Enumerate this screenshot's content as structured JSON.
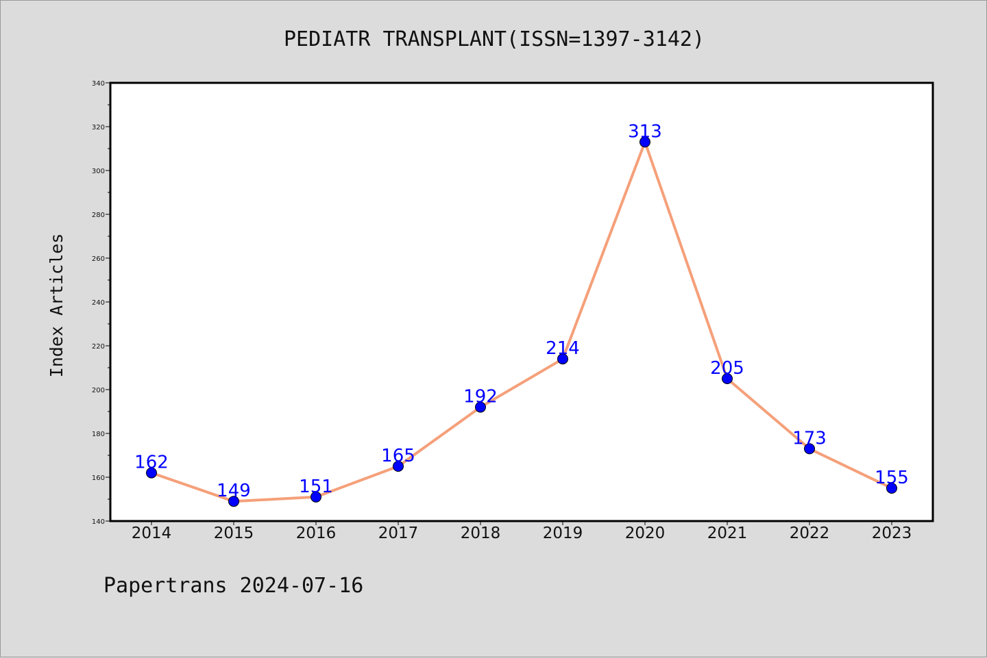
{
  "chart_data": {
    "type": "line",
    "title": "PEDIATR TRANSPLANT(ISSN=1397-3142)",
    "xlabel": "",
    "ylabel": "Index Articles",
    "categories": [
      "2014",
      "2015",
      "2016",
      "2017",
      "2018",
      "2019",
      "2020",
      "2021",
      "2022",
      "2023"
    ],
    "series": [
      {
        "values": [
          162,
          149,
          151,
          165,
          192,
          214,
          313,
          205,
          173,
          155
        ]
      }
    ],
    "ylim": [
      140,
      340
    ],
    "yticks": [
      140,
      160,
      180,
      200,
      220,
      240,
      260,
      280,
      300,
      320,
      340
    ],
    "grid": false,
    "line_color": "#f5a07a",
    "marker_color": "#0000ff",
    "label_color": "#0000ff"
  },
  "footer": "Papertrans 2024-07-16"
}
